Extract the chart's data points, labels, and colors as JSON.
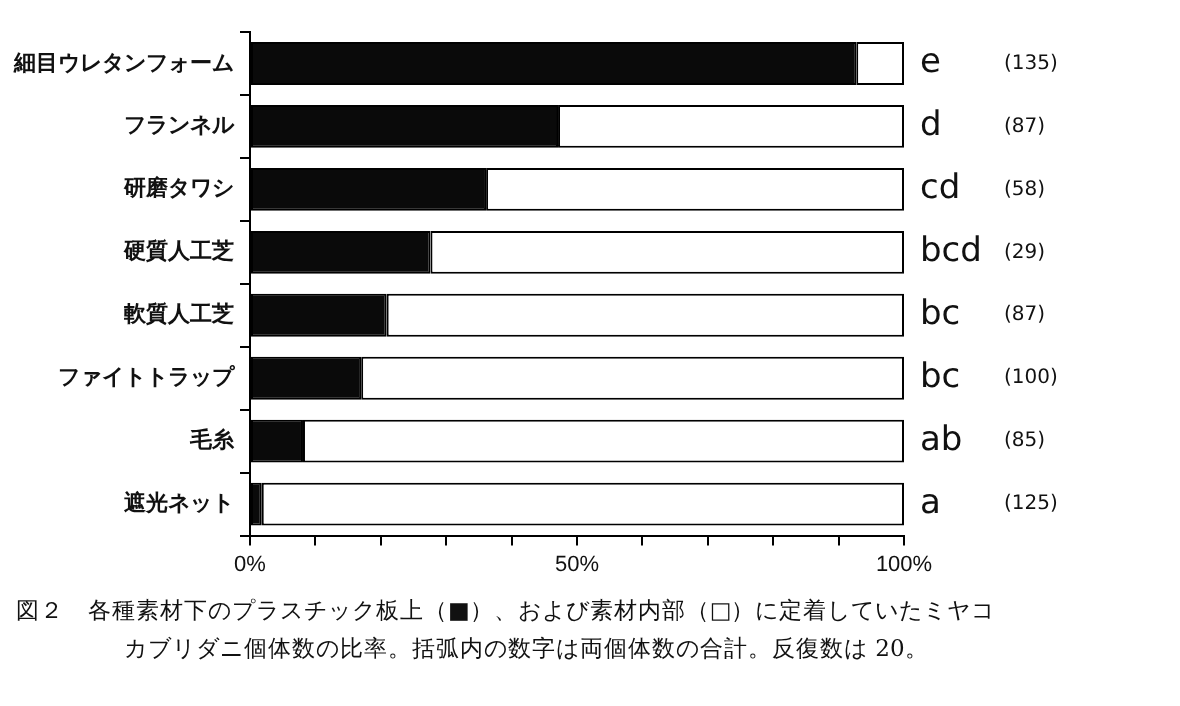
{
  "chart_data": {
    "type": "bar",
    "orientation": "horizontal",
    "stacked": true,
    "categories": [
      "細目ウレタンフォーム",
      "フランネル",
      "研磨タワシ",
      "硬質人工芝",
      "軟質人工芝",
      "ファイトトラップ",
      "毛糸",
      "遮光ネット"
    ],
    "series": [
      {
        "color": "#0a0a0a",
        "values": [
          92.7,
          47.1,
          36.1,
          27.6,
          20.9,
          17.0,
          8.1,
          1.8
        ]
      },
      {
        "color": "#ffffff",
        "values": [
          7.3,
          52.9,
          63.9,
          72.4,
          79.1,
          83.0,
          91.9,
          98.2
        ]
      }
    ],
    "xlim": [
      0,
      100
    ],
    "xticks": [
      {
        "value": 0,
        "label": "0%"
      },
      {
        "value": 10,
        "label": null
      },
      {
        "value": 20,
        "label": null
      },
      {
        "value": 30,
        "label": null
      },
      {
        "value": 40,
        "label": null
      },
      {
        "value": 50,
        "label": "50%"
      },
      {
        "value": 60,
        "label": null
      },
      {
        "value": 70,
        "label": null
      },
      {
        "value": 80,
        "label": null
      },
      {
        "value": 90,
        "label": null
      },
      {
        "value": 100,
        "label": "100%"
      }
    ],
    "grid": false,
    "legend": false,
    "annotations": [
      "e",
      "(135)",
      "d",
      "(87)",
      "cd",
      "(58)",
      "bcd",
      "(29)",
      "bc",
      "(87)",
      "bc",
      "(100)",
      "ab",
      "(85)",
      "a",
      "(125)",
      "図２　各種素材下のプラスチック板上（■）、および素材内部（□）に定着していたミヤコ",
      "カブリダニ個体数の比率。括弧内の数字は両個体数の合計。反復数は 20。"
    ]
  }
}
